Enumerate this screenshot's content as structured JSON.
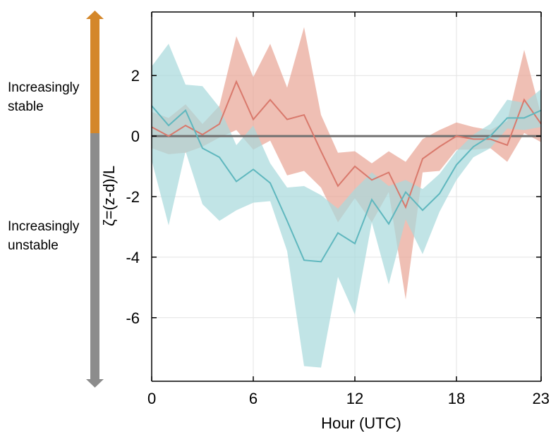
{
  "chart_data": {
    "type": "area",
    "xlabel": "Hour (UTC)",
    "ylabel": "ζ=(z-d)/L",
    "xlim": [
      0,
      23
    ],
    "ylim": [
      -8.1,
      4.1
    ],
    "xticks": [
      0,
      6,
      12,
      18,
      23
    ],
    "yticks": [
      2,
      0,
      -2,
      -4,
      -6
    ],
    "grid": true,
    "reference_line": 0,
    "stability_labels": {
      "stable": [
        "Increasingly",
        "stable"
      ],
      "unstable": [
        "Increasingly",
        "unstable"
      ]
    },
    "stability_colors": {
      "stable": "#d4872a",
      "unstable": "#8c8c8c"
    },
    "series": [
      {
        "color": "#d9796c",
        "band_color": "#e9a697",
        "x": [
          0,
          1,
          2,
          3,
          4,
          5,
          6,
          7,
          8,
          9,
          10,
          11,
          12,
          13,
          14,
          15,
          16,
          17,
          18,
          19,
          20,
          21,
          22,
          23
        ],
        "values": [
          0.3,
          0.0,
          0.35,
          0.05,
          0.4,
          1.8,
          0.55,
          1.2,
          0.55,
          0.7,
          -0.5,
          -1.65,
          -1.0,
          -1.45,
          -1.2,
          -2.35,
          -0.75,
          -0.35,
          0.0,
          -0.1,
          -0.1,
          -0.3,
          1.2,
          0.4
        ],
        "upper": [
          0.8,
          0.6,
          1.05,
          0.4,
          1.0,
          3.3,
          1.95,
          3.05,
          1.6,
          3.6,
          0.7,
          -0.55,
          -0.5,
          -0.9,
          -0.5,
          -0.85,
          -0.1,
          0.2,
          0.45,
          0.3,
          0.2,
          0.5,
          2.85,
          0.7
        ],
        "lower": [
          -0.4,
          -0.6,
          -0.55,
          -0.35,
          -0.05,
          0.2,
          -0.45,
          -0.15,
          -1.3,
          -1.15,
          -1.7,
          -2.85,
          -2.05,
          -2.85,
          -1.85,
          -5.4,
          -1.2,
          -1.15,
          -0.45,
          -0.45,
          -0.4,
          -0.85,
          0.1,
          -0.2
        ]
      },
      {
        "color": "#5fb7be",
        "band_color": "#a9d9dd",
        "x": [
          0,
          1,
          2,
          3,
          4,
          5,
          6,
          7,
          8,
          9,
          10,
          11,
          12,
          13,
          14,
          15,
          16,
          17,
          18,
          19,
          20,
          21,
          22,
          23
        ],
        "values": [
          1.0,
          0.35,
          0.85,
          -0.4,
          -0.7,
          -1.5,
          -1.1,
          -1.55,
          -2.8,
          -4.1,
          -4.15,
          -3.2,
          -3.55,
          -2.1,
          -2.9,
          -1.85,
          -2.45,
          -1.9,
          -0.95,
          -0.35,
          0.0,
          0.6,
          0.6,
          0.85
        ],
        "upper": [
          2.3,
          3.05,
          1.7,
          1.65,
          0.95,
          -0.3,
          0.35,
          -0.9,
          -1.7,
          -1.65,
          -1.95,
          -2.4,
          -1.75,
          -1.2,
          -1.65,
          -1.45,
          -1.75,
          -1.25,
          -0.5,
          0.05,
          0.4,
          1.2,
          1.1,
          1.55
        ],
        "lower": [
          -0.8,
          -2.95,
          -0.5,
          -2.25,
          -2.8,
          -2.45,
          -2.2,
          -2.15,
          -3.8,
          -7.6,
          -7.65,
          -4.65,
          -5.9,
          -2.85,
          -4.9,
          -2.75,
          -3.9,
          -2.5,
          -1.45,
          -0.7,
          -0.4,
          0.25,
          0.2,
          0.3
        ]
      }
    ]
  }
}
